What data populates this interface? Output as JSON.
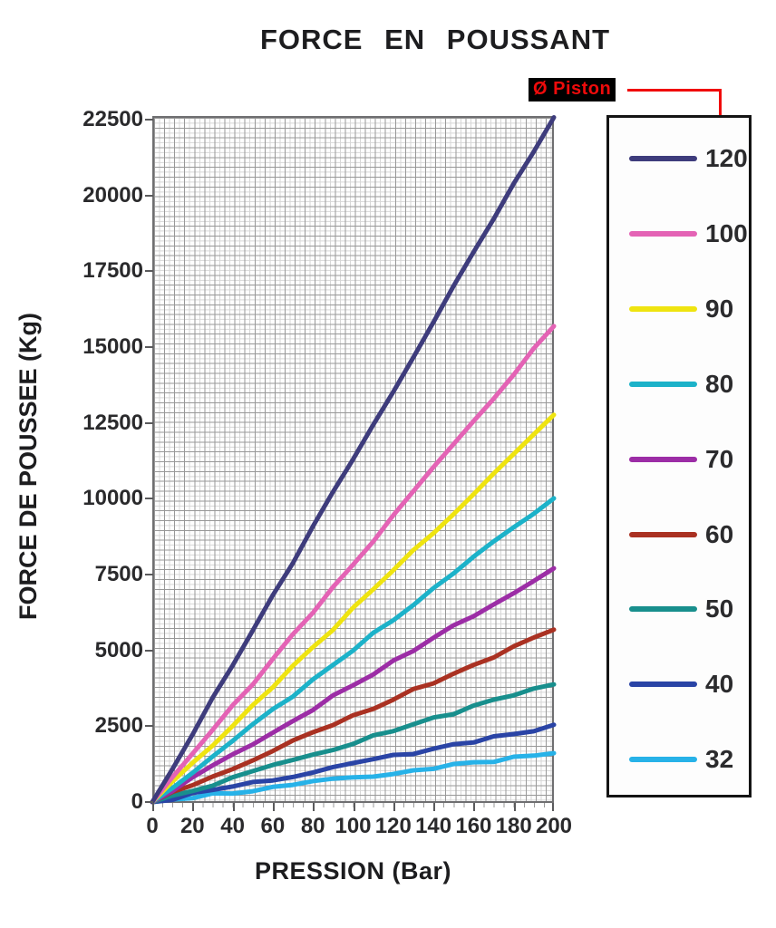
{
  "title": "FORCE EN POUSSANT",
  "legend": {
    "header": "Ø Piston"
  },
  "colors": {
    "connector_red": "#f00a0a",
    "piston_label_bg": "#000000",
    "piston_label_text": "#ee0b0b",
    "grid_major": "#989898",
    "grid_minor": "#d7d7d7",
    "plot_border": "#6f6f71",
    "legend_border": "#141414",
    "text": "#231f20"
  },
  "chart_data": {
    "type": "line",
    "title": "FORCE EN POUSSANT",
    "xlabel": "PRESSION (Bar)",
    "ylabel": "FORCE DE POUSSEE (Kg)",
    "x": [
      0,
      20,
      40,
      60,
      80,
      100,
      120,
      140,
      160,
      180,
      200
    ],
    "x_tick_labels": [
      "0",
      "20",
      "40",
      "60",
      "80",
      "100",
      "120",
      "140",
      "160",
      "180",
      "200"
    ],
    "y_ticks": [
      0,
      2500,
      5000,
      7500,
      10000,
      12500,
      15000,
      17500,
      20000,
      22500
    ],
    "y_tick_labels": [
      "0",
      "2500",
      "5000",
      "7500",
      "10000",
      "12500",
      "15000",
      "17500",
      "20000",
      "22500"
    ],
    "xlim": [
      0,
      200
    ],
    "ylim": [
      0,
      22500
    ],
    "grid": "graph-paper",
    "legend_position": "right",
    "legend_title": "Ø Piston",
    "series": [
      {
        "name": "120",
        "color": "#3e3c7c",
        "values": [
          0,
          2262,
          4524,
          6786,
          9048,
          11310,
          13572,
          15834,
          18096,
          20358,
          22619
        ]
      },
      {
        "name": "100",
        "color": "#e463b5",
        "values": [
          0,
          1571,
          3142,
          4712,
          6283,
          7854,
          9425,
          10996,
          12566,
          14137,
          15708
        ]
      },
      {
        "name": "90",
        "color": "#efe410",
        "values": [
          0,
          1272,
          2545,
          3817,
          5089,
          6362,
          7634,
          8906,
          10179,
          11451,
          12723
        ]
      },
      {
        "name": "80",
        "color": "#1cb2c9",
        "values": [
          0,
          1005,
          2011,
          3016,
          4021,
          5027,
          6032,
          7037,
          8042,
          9048,
          10053
        ]
      },
      {
        "name": "70",
        "color": "#9c2da6",
        "values": [
          0,
          770,
          1539,
          2309,
          3079,
          3848,
          4618,
          5388,
          6158,
          6927,
          7697
        ]
      },
      {
        "name": "60",
        "color": "#aa3122",
        "values": [
          0,
          565,
          1131,
          1696,
          2262,
          2827,
          3393,
          3958,
          4524,
          5089,
          5655
        ]
      },
      {
        "name": "50",
        "color": "#188f8d",
        "values": [
          0,
          393,
          785,
          1178,
          1571,
          1963,
          2356,
          2749,
          3142,
          3534,
          3927
        ]
      },
      {
        "name": "40",
        "color": "#2a44a6",
        "values": [
          0,
          251,
          503,
          754,
          1005,
          1257,
          1508,
          1760,
          2011,
          2262,
          2513
        ]
      },
      {
        "name": "32",
        "color": "#27b2e8",
        "values": [
          0,
          161,
          322,
          483,
          643,
          804,
          965,
          1126,
          1287,
          1448,
          1609
        ]
      }
    ]
  }
}
